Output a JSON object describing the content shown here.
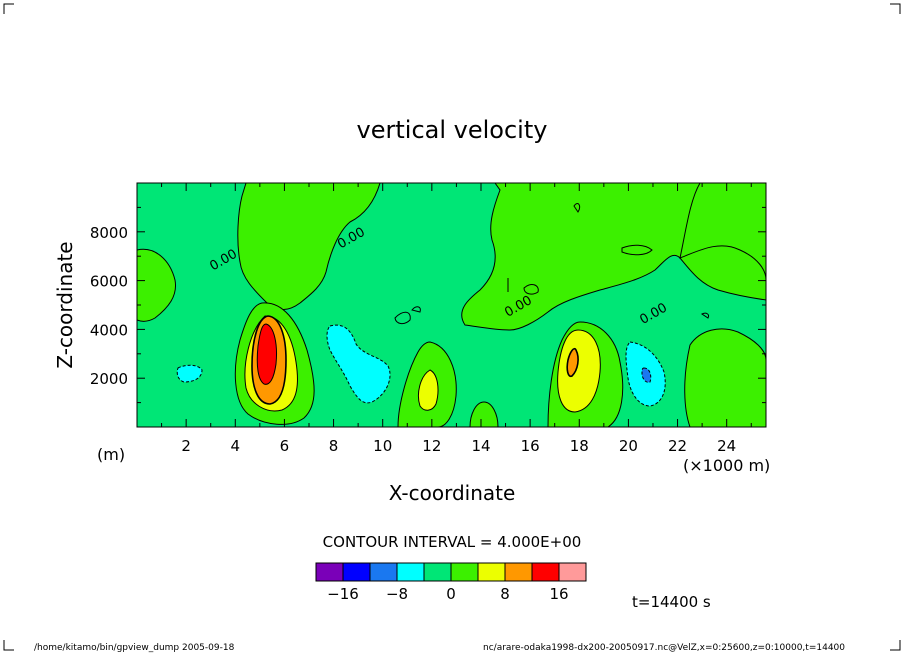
{
  "chart_data": {
    "type": "heatmap",
    "title": "vertical velocity",
    "xlabel": "X-coordinate",
    "ylabel": "Z-coordinate",
    "x_unit": "(×1000 m)",
    "y_unit": "(m)",
    "xlim": [
      0,
      25.6
    ],
    "ylim": [
      0,
      10000
    ],
    "x_ticks": [
      2,
      4,
      6,
      8,
      10,
      12,
      14,
      16,
      18,
      20,
      22,
      24
    ],
    "y_ticks": [
      2000,
      4000,
      6000,
      8000
    ],
    "contour_labels": [
      {
        "text": "0.00",
        "x": 3.6,
        "z": 6700
      },
      {
        "text": "0.00",
        "x": 8.8,
        "z": 7600
      },
      {
        "text": "0.00",
        "x": 15.6,
        "z": 4800
      },
      {
        "text": "0.00",
        "x": 21.1,
        "z": 4500
      }
    ],
    "contour_interval_text": "CONTOUR INTERVAL = 4.000E+00",
    "colorbar": {
      "boundaries": [
        -20,
        -16,
        -12,
        -8,
        -4,
        0,
        4,
        8,
        12,
        16,
        20
      ],
      "tick_labels": [
        "−16",
        "−8",
        "0",
        "8",
        "16"
      ],
      "tick_values": [
        -16,
        -8,
        0,
        8,
        16
      ],
      "colors": [
        "#7a00b8",
        "#0000ff",
        "#1a78f0",
        "#00ffff",
        "#00e676",
        "#3cf000",
        "#ecff00",
        "#ff9800",
        "#ff0000",
        "#ff9a9a"
      ]
    },
    "time_label": "t=14400 s",
    "features": [
      {
        "type": "updraft",
        "x": 5.3,
        "z": 3000,
        "max": 16
      },
      {
        "type": "updraft",
        "x": 17.7,
        "z": 2600,
        "max": 12
      },
      {
        "type": "updraft",
        "x": 11.8,
        "z": 1900,
        "max": 8
      },
      {
        "type": "downdraft",
        "x": 8.8,
        "z": 3000,
        "min": -8
      },
      {
        "type": "downdraft",
        "x": 20.7,
        "z": 2500,
        "min": -12
      },
      {
        "type": "downdraft",
        "x": 2.0,
        "z": 2200,
        "min": -4
      }
    ]
  },
  "footer": {
    "left": "/home/kitamo/bin/gpview_dump  2005-09-18",
    "right": "nc/arare-odaka1998-dx200-20050917.nc@VelZ,x=0:25600,z=0:10000,t=14400"
  },
  "colors": {
    "background_level": "#00e676",
    "frame": "#000000"
  }
}
